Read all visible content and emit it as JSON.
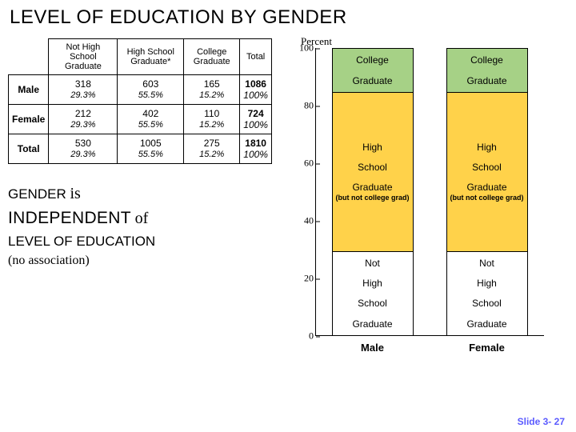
{
  "title": "LEVEL OF EDUCATION BY GENDER",
  "table": {
    "col_headers": [
      "Not High School Graduate",
      "High School Graduate*",
      "College Graduate",
      "Total"
    ],
    "rows": [
      {
        "head": "Male",
        "cells": [
          {
            "v": "318",
            "p": "29.3%"
          },
          {
            "v": "603",
            "p": "55.5%"
          },
          {
            "v": "165",
            "p": "15.2%"
          }
        ],
        "total": {
          "v": "1086",
          "p": "100%"
        }
      },
      {
        "head": "Female",
        "cells": [
          {
            "v": "212",
            "p": "29.3%"
          },
          {
            "v": "402",
            "p": "55.5%"
          },
          {
            "v": "110",
            "p": "15.2%"
          }
        ],
        "total": {
          "v": "724",
          "p": "100%"
        }
      },
      {
        "head": "Total",
        "cells": [
          {
            "v": "530",
            "p": "29.3%"
          },
          {
            "v": "1005",
            "p": "55.5%"
          },
          {
            "v": "275",
            "p": "15.2%"
          }
        ],
        "total": {
          "v": "1810",
          "p": "100%"
        }
      }
    ]
  },
  "statements": {
    "line1a": "GENDER",
    "line1b": "is",
    "line2a": "INDEPENDENT",
    "line2b": "of",
    "line3": "LEVEL OF EDUCATION",
    "line4": "(no  association)"
  },
  "chart": {
    "type": "stacked-bar",
    "y_label": "Percent",
    "ylim": [
      0,
      100
    ],
    "ticks": [
      0,
      20,
      40,
      60,
      80,
      100
    ],
    "series_colors": {
      "college": "#a6d186",
      "hsg": "#ffd24a",
      "nhsg": "#ffffff"
    },
    "bars": [
      {
        "label": "Male",
        "segments": [
          {
            "key": "college",
            "h": 15.2,
            "text": "College Graduate",
            "note": ""
          },
          {
            "key": "hsg",
            "h": 55.5,
            "text": "High School Graduate",
            "note": "(but not college grad)"
          },
          {
            "key": "nhsg",
            "h": 29.3,
            "text": "Not High School Graduate",
            "note": ""
          }
        ]
      },
      {
        "label": "Female",
        "segments": [
          {
            "key": "college",
            "h": 15.2,
            "text": "College Graduate",
            "note": ""
          },
          {
            "key": "hsg",
            "h": 55.5,
            "text": "High School Graduate",
            "note": "(but not college grad)"
          },
          {
            "key": "nhsg",
            "h": 29.3,
            "text": "Not High School Graduate",
            "note": ""
          }
        ]
      }
    ]
  },
  "footer": "Slide 3- 27"
}
